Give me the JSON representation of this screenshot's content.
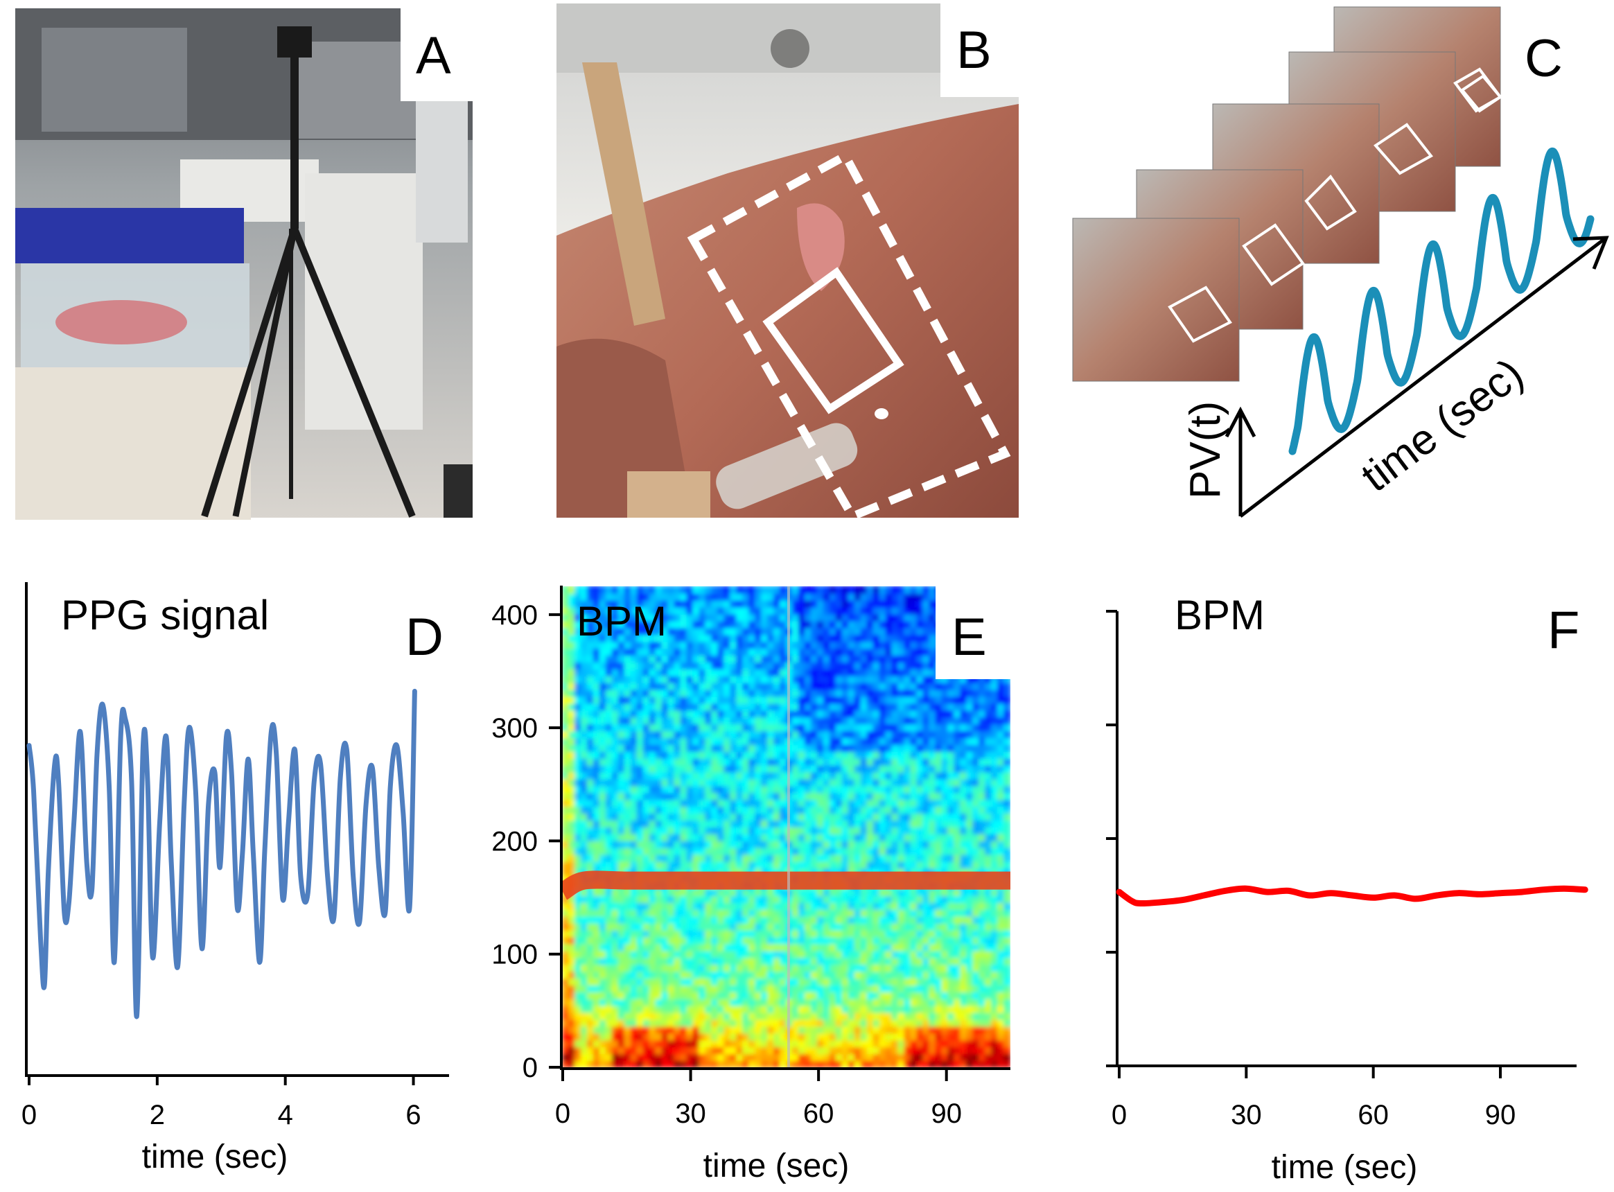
{
  "panels": {
    "a": {
      "letter": "A"
    },
    "b": {
      "letter": "B"
    },
    "c": {
      "letter": "C",
      "y_label": "PV(t)",
      "x_label": "time (sec)"
    }
  },
  "colors": {
    "ppg_line": "#4f7fc0",
    "bpm_line": "#ff0000",
    "schematic_wave": "#1b8fb8",
    "roi_outline": "#ffffff"
  },
  "chart_data": [
    {
      "panel": "D",
      "type": "line",
      "title": "PPG signal",
      "xlabel": "time (sec)",
      "ylabel": "",
      "xlim": [
        0,
        6.6
      ],
      "ylim": [
        0,
        1
      ],
      "x_ticks": [
        0,
        2,
        4,
        6
      ],
      "x_tick_labels": [
        "0",
        "2",
        "4",
        "6"
      ],
      "series": [
        {
          "x": [
            0,
            0.07,
            0.18,
            0.24,
            0.3,
            0.4,
            0.46,
            0.55,
            0.62,
            0.7,
            0.8,
            0.9,
            0.98,
            1.06,
            1.15,
            1.25,
            1.33,
            1.43,
            1.5,
            1.6,
            1.68,
            1.78,
            1.85,
            1.93,
            2.04,
            2.14,
            2.22,
            2.32,
            2.42,
            2.5,
            2.6,
            2.7,
            2.8,
            2.9,
            2.98,
            3.08,
            3.16,
            3.25,
            3.33,
            3.42,
            3.5,
            3.6,
            3.68,
            3.78,
            3.86,
            3.96,
            4.05,
            4.15,
            4.24,
            4.35,
            4.45,
            4.55,
            4.66,
            4.76,
            4.86,
            4.96,
            5.06,
            5.16,
            5.26,
            5.36,
            5.46,
            5.56,
            5.64,
            5.74,
            5.84,
            5.94,
            6.02
          ],
          "values": [
            0.7,
            0.6,
            0.27,
            0.17,
            0.42,
            0.66,
            0.62,
            0.33,
            0.35,
            0.53,
            0.73,
            0.44,
            0.38,
            0.68,
            0.79,
            0.61,
            0.22,
            0.72,
            0.76,
            0.62,
            0.1,
            0.7,
            0.62,
            0.23,
            0.53,
            0.72,
            0.44,
            0.21,
            0.57,
            0.74,
            0.6,
            0.25,
            0.57,
            0.64,
            0.43,
            0.72,
            0.64,
            0.34,
            0.46,
            0.67,
            0.46,
            0.22,
            0.47,
            0.73,
            0.68,
            0.36,
            0.53,
            0.69,
            0.41,
            0.37,
            0.62,
            0.66,
            0.41,
            0.32,
            0.63,
            0.69,
            0.41,
            0.31,
            0.57,
            0.65,
            0.43,
            0.33,
            0.61,
            0.7,
            0.55,
            0.34,
            0.82
          ]
        }
      ],
      "grid": false,
      "legend": "none"
    },
    {
      "panel": "E",
      "type": "heatmap",
      "title": "BPM",
      "xlabel": "time (sec)",
      "ylabel": "",
      "xlim": [
        0,
        105
      ],
      "ylim": [
        0,
        425
      ],
      "x_ticks": [
        0,
        30,
        60,
        90
      ],
      "x_tick_labels": [
        "0",
        "30",
        "60",
        "90"
      ],
      "y_ticks": [
        0,
        100,
        200,
        300,
        400
      ],
      "y_tick_labels": [
        "0",
        "100",
        "200",
        "300",
        "400"
      ],
      "ridge_bpm": [
        155,
        165,
        165,
        165,
        165,
        165,
        165,
        165,
        165,
        165,
        165
      ],
      "ridge_time": [
        0,
        5,
        15,
        25,
        35,
        45,
        55,
        65,
        75,
        85,
        105
      ],
      "colormap": "jet",
      "grid": false,
      "legend": "none"
    },
    {
      "panel": "F",
      "type": "line",
      "title": "BPM",
      "xlabel": "time (sec)",
      "ylabel": "",
      "xlim": [
        0,
        108
      ],
      "ylim": [
        0,
        400
      ],
      "x_ticks": [
        0,
        30,
        60,
        90
      ],
      "x_tick_labels": [
        "0",
        "30",
        "60",
        "90"
      ],
      "y_ticks": [
        0,
        100,
        200,
        300,
        400
      ],
      "series": [
        {
          "x": [
            0,
            3,
            5,
            10,
            15,
            20,
            25,
            30,
            35,
            40,
            45,
            50,
            55,
            60,
            65,
            70,
            75,
            80,
            85,
            90,
            95,
            100,
            105,
            110
          ],
          "values": [
            153,
            145,
            143,
            144,
            146,
            150,
            154,
            156,
            153,
            154,
            150,
            152,
            150,
            148,
            150,
            147,
            150,
            152,
            151,
            152,
            153,
            155,
            156,
            155
          ]
        }
      ],
      "grid": false,
      "legend": "none"
    }
  ]
}
